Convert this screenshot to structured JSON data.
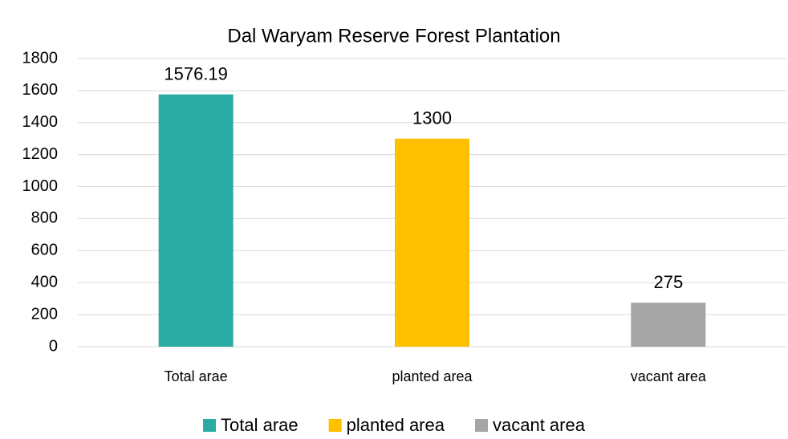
{
  "chart_data": {
    "type": "bar",
    "title": "Dal Waryam Reserve Forest Plantation",
    "categories": [
      "Total arae",
      "planted area",
      "vacant area"
    ],
    "values": [
      1576.19,
      1300,
      275
    ],
    "colors": [
      "#2aaca4",
      "#ffc000",
      "#a5a5a5"
    ],
    "ylim": [
      0,
      1800
    ],
    "yticks": [
      0,
      200,
      400,
      600,
      800,
      1000,
      1200,
      1400,
      1600,
      1800
    ],
    "grid": true,
    "data_labels": true,
    "legend": "bottom"
  }
}
